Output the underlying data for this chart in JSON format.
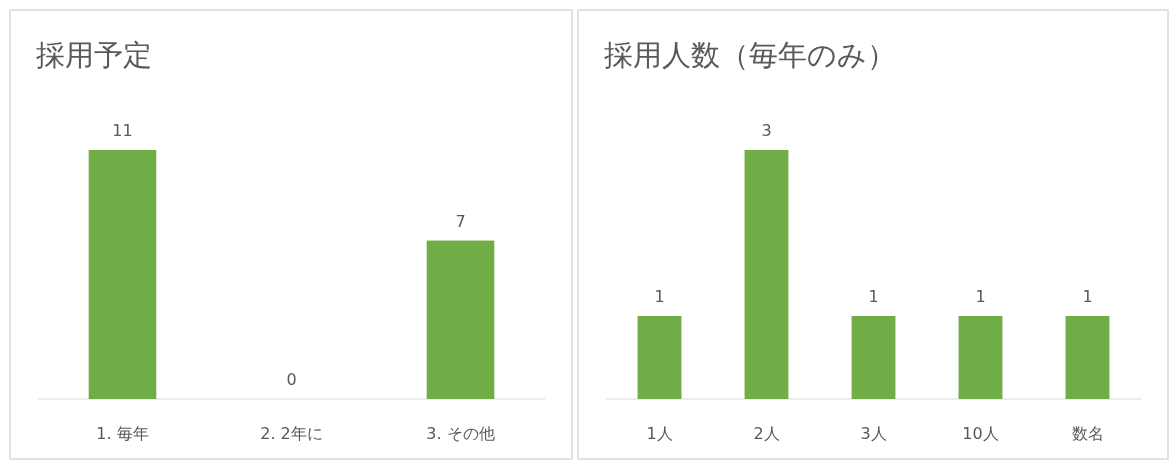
{
  "chart_data": [
    {
      "type": "bar",
      "title": "採用予定",
      "categories": [
        "1. 毎年",
        "2. 2年に",
        "3. その他"
      ],
      "values": [
        11,
        0,
        7
      ],
      "color": "#70ad47",
      "data_labels": true
    },
    {
      "type": "bar",
      "title": "採用人数（毎年のみ）",
      "categories": [
        "1人",
        "2人",
        "3人",
        "10人",
        "数名"
      ],
      "values": [
        1,
        3,
        1,
        1,
        1
      ],
      "color": "#70ad47",
      "data_labels": true
    }
  ]
}
